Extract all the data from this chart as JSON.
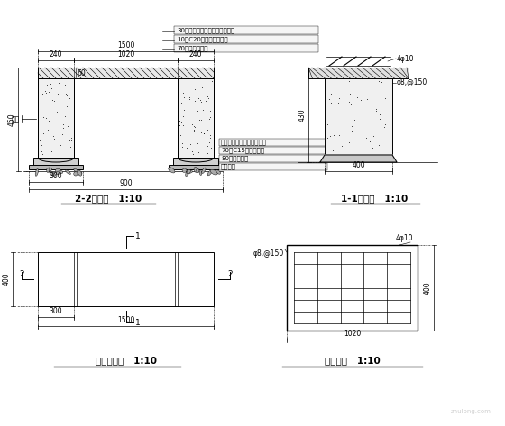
{
  "bg_color": "#ffffff",
  "line_color": "#000000",
  "title_2_2": "2-2剖面图   1:10",
  "title_1_1": "1-1剖面图   1:10",
  "title_plan": "座凳平面图   1:10",
  "title_rebar": "凳板配筋   1:10",
  "annotations_top": [
    "30厚印花红花岗岩置板（光面）",
    "10厚C20水泥沙浆结合层",
    "70厚钢筋砼凳板"
  ],
  "annotations_right_2_2": [
    "印花红花岗岩石墩（毛面）",
    "70厚C15混凝土垫层",
    "80厚碎石垫层",
    "素土夯实"
  ],
  "dim_1500": "1500",
  "dim_240_left": "240",
  "dim_1020": "1020",
  "dim_240_right": "240",
  "dim_450": "450",
  "dim_60": "60",
  "dim_900": "900",
  "dim_300": "300",
  "label_jiceng": "桩数",
  "dim_430_11": "430",
  "dim_400_11": "400",
  "rebar_4phi10": "4φ10",
  "rebar_phi8": "φ8,@150",
  "dim_rebar_1020": "1020",
  "dim_rebar_400": "400"
}
